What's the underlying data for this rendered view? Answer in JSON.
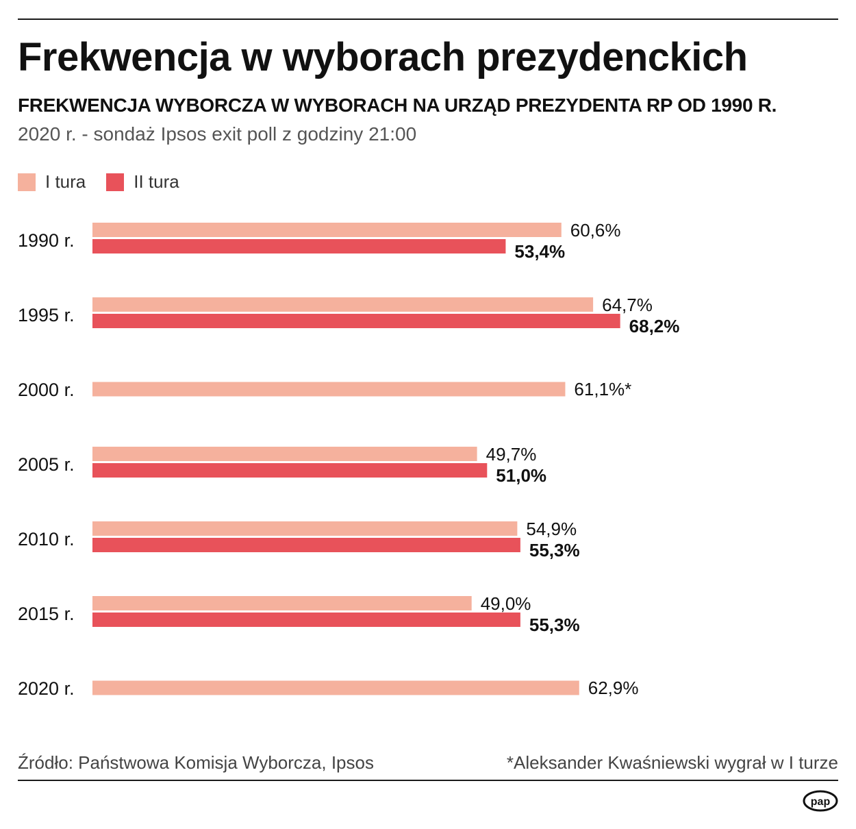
{
  "header": {
    "title": "Frekwencja w wyborach prezydenckich",
    "subtitle": "FREKWENCJA WYBORCZA W WYBORACH NA URZĄD PREZYDENTA RP OD 1990 R.",
    "note": "2020 r. - sondaż Ipsos exit poll z godziny 21:00"
  },
  "legend": {
    "round1_label": "I tura",
    "round2_label": "II tura"
  },
  "colors": {
    "round1": "#f5b19d",
    "round2": "#e8525a",
    "text": "#111111"
  },
  "chart_data": {
    "type": "bar",
    "orientation": "horizontal",
    "title": "Frekwencja w wyborach prezydenckich",
    "unit": "%",
    "categories": [
      "1990 r.",
      "1995 r.",
      "2000 r.",
      "2005 r.",
      "2010 r.",
      "2015 r.",
      "2020 r."
    ],
    "series": [
      {
        "name": "I tura",
        "values": [
          60.6,
          64.7,
          61.1,
          49.7,
          54.9,
          49.0,
          62.9
        ],
        "labels": [
          "60,6%",
          "64,7%",
          "61,1%*",
          "49,7%",
          "54,9%",
          "49,0%",
          "62,9%"
        ]
      },
      {
        "name": "II tura",
        "values": [
          53.4,
          68.2,
          null,
          51.0,
          55.3,
          55.3,
          null
        ],
        "labels": [
          "53,4%",
          "68,2%",
          null,
          "51,0%",
          "55,3%",
          "55,3%",
          null
        ]
      }
    ],
    "xlim": [
      0,
      100
    ],
    "grid": false,
    "legend_position": "top-left"
  },
  "footer": {
    "source": "Źródło: Państwowa Komisja Wyborcza, Ipsos",
    "footnote": "*Aleksander Kwaśniewski wygrał w I turze",
    "logo_text": "pap"
  }
}
